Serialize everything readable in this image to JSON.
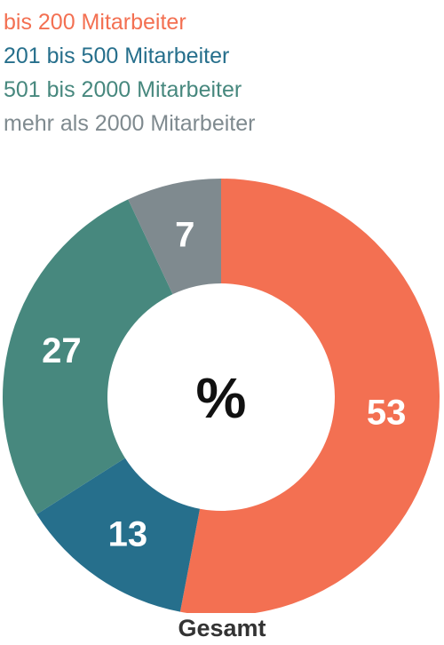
{
  "chart_data": {
    "type": "pie",
    "variant": "donut",
    "unit": "%",
    "caption": "Gesamt",
    "legend": {
      "placement": "top-left"
    },
    "series": [
      {
        "name": "bis 200 Mitarbeiter",
        "value": 53,
        "color": "#F37052"
      },
      {
        "name": "201 bis 500 Mitarbeiter",
        "value": 13,
        "color": "#266F8C"
      },
      {
        "name": "501 bis 2000 Mitarbeiter",
        "value": 27,
        "color": "#47887E"
      },
      {
        "name": "mehr als 2000 Mitarbeiter",
        "value": 7,
        "color": "#7F8A8F"
      }
    ]
  }
}
